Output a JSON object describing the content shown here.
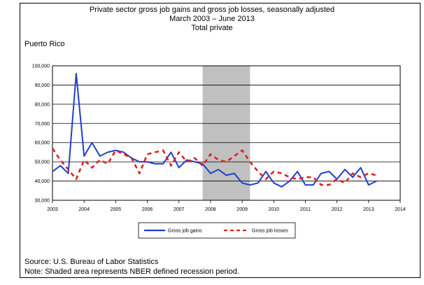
{
  "title_lines": [
    "Private sector gross job gains and gross job losses, seasonally adjusted",
    "March 2003 – June 2013",
    "Total private"
  ],
  "region": "Puerto Rico",
  "source": "Source: U.S. Bureau of Labor Statistics",
  "note": "Note: Shaded area represents NBER defined recession period.",
  "chart_data": {
    "type": "line",
    "ylim": [
      30000,
      100000
    ],
    "yticks": [
      "30,000",
      "40,000",
      "50,000",
      "60,000",
      "70,000",
      "80,000",
      "90,000",
      "100,000"
    ],
    "xlim": [
      2003,
      2014
    ],
    "xticks": [
      "2003",
      "2004",
      "2005",
      "2006",
      "2007",
      "2008",
      "2009",
      "2010",
      "2011",
      "2012",
      "2013",
      "2014"
    ],
    "recession": [
      2007.75,
      2009.25
    ],
    "recession_color": "#c0c0c0",
    "series": [
      {
        "name": "Gross job gains",
        "color": "#1f3fcf",
        "dash": "solid",
        "x": [
          2003.0,
          2003.25,
          2003.5,
          2003.75,
          2004.0,
          2004.25,
          2004.5,
          2004.75,
          2005.0,
          2005.25,
          2005.5,
          2005.75,
          2006.0,
          2006.25,
          2006.5,
          2006.75,
          2007.0,
          2007.25,
          2007.5,
          2007.75,
          2008.0,
          2008.25,
          2008.5,
          2008.75,
          2009.0,
          2009.25,
          2009.5,
          2009.75,
          2010.0,
          2010.25,
          2010.5,
          2010.75,
          2011.0,
          2011.25,
          2011.5,
          2011.75,
          2012.0,
          2012.25,
          2012.5,
          2012.75,
          2013.0,
          2013.25
        ],
        "values": [
          45000,
          48000,
          44000,
          96000,
          53000,
          60000,
          53000,
          55000,
          56000,
          55000,
          52000,
          50000,
          50000,
          49000,
          49000,
          55000,
          47000,
          51000,
          50000,
          49000,
          44000,
          46000,
          43000,
          44000,
          39000,
          38000,
          39000,
          45000,
          39000,
          37000,
          40000,
          45000,
          38000,
          38000,
          44000,
          45000,
          41000,
          46000,
          42000,
          47000,
          38000,
          40000
        ]
      },
      {
        "name": "Gross job losses",
        "color": "#e02020",
        "dash": "dashed",
        "x": [
          2003.0,
          2003.25,
          2003.5,
          2003.75,
          2004.0,
          2004.25,
          2004.5,
          2004.75,
          2005.0,
          2005.25,
          2005.5,
          2005.75,
          2006.0,
          2006.25,
          2006.5,
          2006.75,
          2007.0,
          2007.25,
          2007.5,
          2007.75,
          2008.0,
          2008.25,
          2008.5,
          2008.75,
          2009.0,
          2009.25,
          2009.5,
          2009.75,
          2010.0,
          2010.25,
          2010.5,
          2010.75,
          2011.0,
          2011.25,
          2011.5,
          2011.75,
          2012.0,
          2012.25,
          2012.5,
          2012.75,
          2013.0,
          2013.25
        ],
        "values": [
          57000,
          51000,
          46000,
          41000,
          51000,
          47000,
          51000,
          49000,
          56000,
          54000,
          52000,
          44000,
          54000,
          55000,
          56000,
          48000,
          55000,
          50000,
          52000,
          48000,
          54000,
          51000,
          50000,
          53000,
          56000,
          50000,
          45000,
          41000,
          45000,
          44000,
          42000,
          41000,
          42000,
          42000,
          38000,
          38000,
          41000,
          39000,
          44000,
          42000,
          44000,
          43000
        ]
      }
    ]
  }
}
